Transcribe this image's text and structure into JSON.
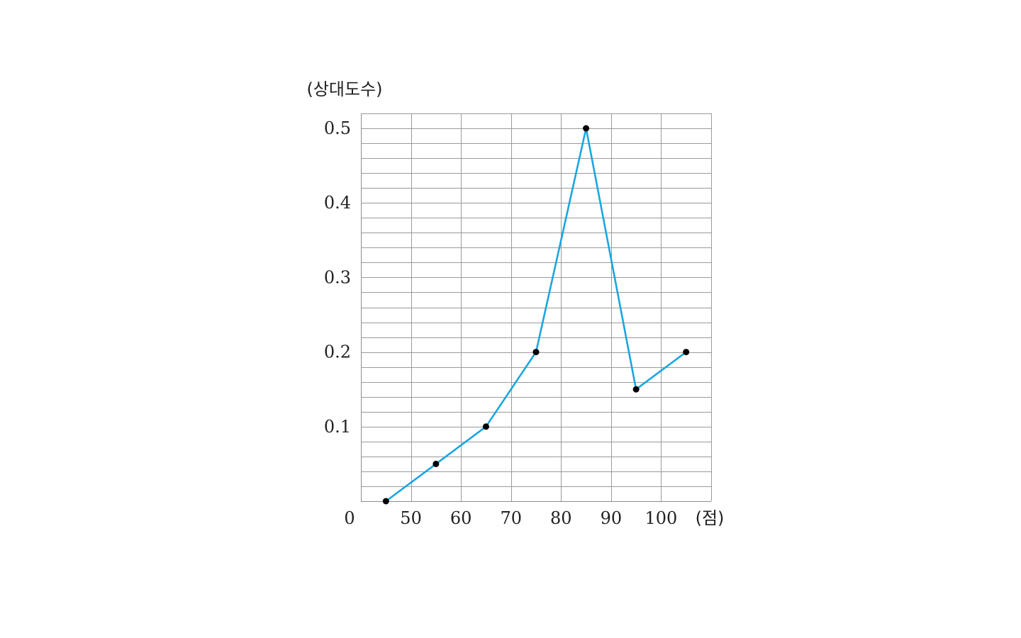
{
  "chart_data": {
    "type": "line",
    "title": "",
    "xlabel": "(점)",
    "ylabel": "(상대도수)",
    "origin_label": "0",
    "x_ticks": [
      50,
      60,
      70,
      80,
      90,
      100
    ],
    "x_tick_labels": [
      "50",
      "60",
      "70",
      "80",
      "90",
      "100"
    ],
    "y_ticks": [
      0.1,
      0.2,
      0.3,
      0.4,
      0.5
    ],
    "y_tick_labels": [
      "0.1",
      "0.2",
      "0.3",
      "0.4",
      "0.5"
    ],
    "xlim": [
      40,
      110
    ],
    "ylim": [
      0,
      0.52
    ],
    "grid": true,
    "x_grid_step": 10,
    "y_grid_step": 0.02,
    "series": [
      {
        "x": [
          45,
          55,
          65,
          75,
          85,
          95,
          105
        ],
        "y": [
          0,
          0.05,
          0.1,
          0.2,
          0.5,
          0.15,
          0.2
        ],
        "color": "#1aa6e0",
        "marker_color": "#000000"
      }
    ]
  }
}
